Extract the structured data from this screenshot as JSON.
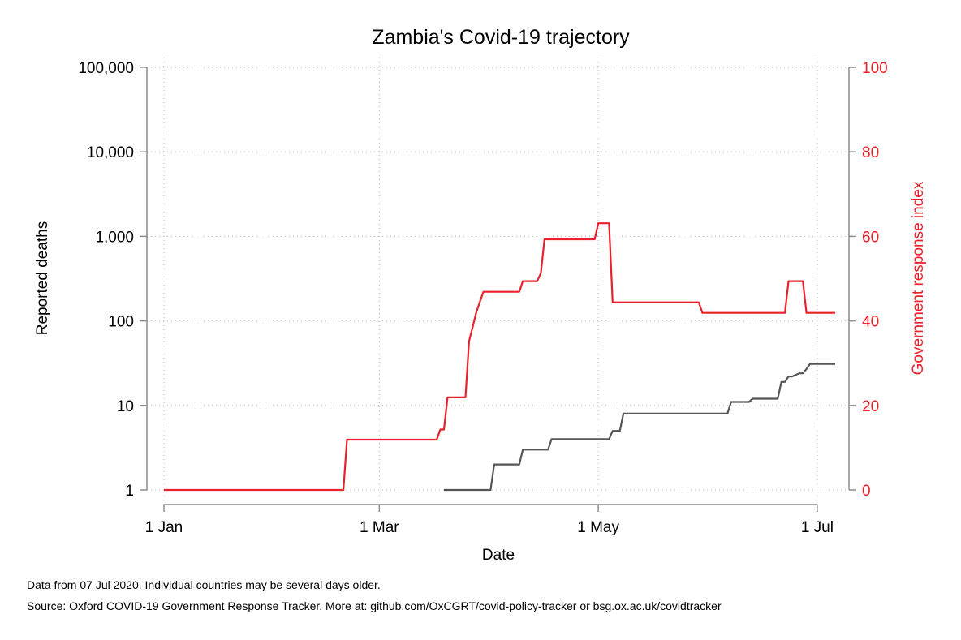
{
  "chart_data": {
    "type": "line",
    "title": "Zambia's Covid-19 trajectory",
    "xlabel": "Date",
    "ylabel_left": "Reported deaths",
    "ylabel_right": "Government response index",
    "y_left_scale": "log",
    "y_left_range": [
      1,
      100000
    ],
    "y_right_range": [
      0,
      100
    ],
    "x_range": [
      "2020-01-01",
      "2020-07-06"
    ],
    "grid": true,
    "x_ticks": [
      {
        "date": "2020-01-01",
        "label": "1 Jan"
      },
      {
        "date": "2020-03-01",
        "label": "1 Mar"
      },
      {
        "date": "2020-05-01",
        "label": "1 May"
      },
      {
        "date": "2020-07-01",
        "label": "1 Jul"
      }
    ],
    "y_left_ticks": [
      {
        "value": 1,
        "label": "1"
      },
      {
        "value": 10,
        "label": "10"
      },
      {
        "value": 100,
        "label": "100"
      },
      {
        "value": 1000,
        "label": "1,000"
      },
      {
        "value": 10000,
        "label": "10,000"
      },
      {
        "value": 100000,
        "label": "100,000"
      }
    ],
    "y_right_ticks": [
      {
        "value": 0,
        "label": "0"
      },
      {
        "value": 20,
        "label": "20"
      },
      {
        "value": 40,
        "label": "40"
      },
      {
        "value": 60,
        "label": "60"
      },
      {
        "value": 80,
        "label": "80"
      },
      {
        "value": 100,
        "label": "100"
      }
    ],
    "series": [
      {
        "axis": "right",
        "color": "#e8212a",
        "step": true,
        "points": [
          [
            "2020-01-01",
            0
          ],
          [
            "2020-02-20",
            0
          ],
          [
            "2020-02-21",
            11.9
          ],
          [
            "2020-03-17",
            11.9
          ],
          [
            "2020-03-18",
            14.3
          ],
          [
            "2020-03-19",
            14.3
          ],
          [
            "2020-03-20",
            21.9
          ],
          [
            "2020-03-25",
            21.9
          ],
          [
            "2020-03-26",
            35.2
          ],
          [
            "2020-03-27",
            38.5
          ],
          [
            "2020-03-28",
            42.0
          ],
          [
            "2020-03-29",
            44.5
          ],
          [
            "2020-03-30",
            46.9
          ],
          [
            "2020-04-09",
            46.9
          ],
          [
            "2020-04-10",
            49.4
          ],
          [
            "2020-04-14",
            49.4
          ],
          [
            "2020-04-15",
            51.3
          ],
          [
            "2020-04-16",
            59.3
          ],
          [
            "2020-04-30",
            59.3
          ],
          [
            "2020-05-01",
            63.1
          ],
          [
            "2020-05-03",
            63.1
          ],
          [
            "2020-05-04",
            63.1
          ],
          [
            "2020-05-05",
            44.4
          ],
          [
            "2020-05-29",
            44.4
          ],
          [
            "2020-05-30",
            41.9
          ],
          [
            "2020-06-22",
            41.9
          ],
          [
            "2020-06-23",
            49.4
          ],
          [
            "2020-06-27",
            49.4
          ],
          [
            "2020-06-28",
            41.9
          ],
          [
            "2020-07-06",
            41.9
          ]
        ]
      },
      {
        "axis": "left",
        "color": "#555555",
        "step": true,
        "points": [
          [
            "2020-03-19",
            1
          ],
          [
            "2020-04-01",
            1
          ],
          [
            "2020-04-02",
            2
          ],
          [
            "2020-04-09",
            2
          ],
          [
            "2020-04-10",
            3
          ],
          [
            "2020-04-17",
            3
          ],
          [
            "2020-04-18",
            4
          ],
          [
            "2020-05-04",
            4
          ],
          [
            "2020-05-05",
            5
          ],
          [
            "2020-05-07",
            5
          ],
          [
            "2020-05-08",
            8
          ],
          [
            "2020-06-06",
            8
          ],
          [
            "2020-06-07",
            11
          ],
          [
            "2020-06-12",
            11
          ],
          [
            "2020-06-13",
            12
          ],
          [
            "2020-06-20",
            12
          ],
          [
            "2020-06-21",
            19
          ],
          [
            "2020-06-22",
            19
          ],
          [
            "2020-06-23",
            22
          ],
          [
            "2020-06-24",
            22
          ],
          [
            "2020-06-25",
            23
          ],
          [
            "2020-06-26",
            24
          ],
          [
            "2020-06-27",
            24
          ],
          [
            "2020-06-28",
            27
          ],
          [
            "2020-06-29",
            31
          ],
          [
            "2020-07-06",
            31
          ]
        ]
      }
    ]
  },
  "footnotes": {
    "line1": "Data from 07 Jul 2020. Individual countries may be several days older.",
    "line2": "Source: Oxford COVID-19 Government Response Tracker. More at: github.com/OxCGRT/covid-policy-tracker or bsg.ox.ac.uk/covidtracker"
  }
}
